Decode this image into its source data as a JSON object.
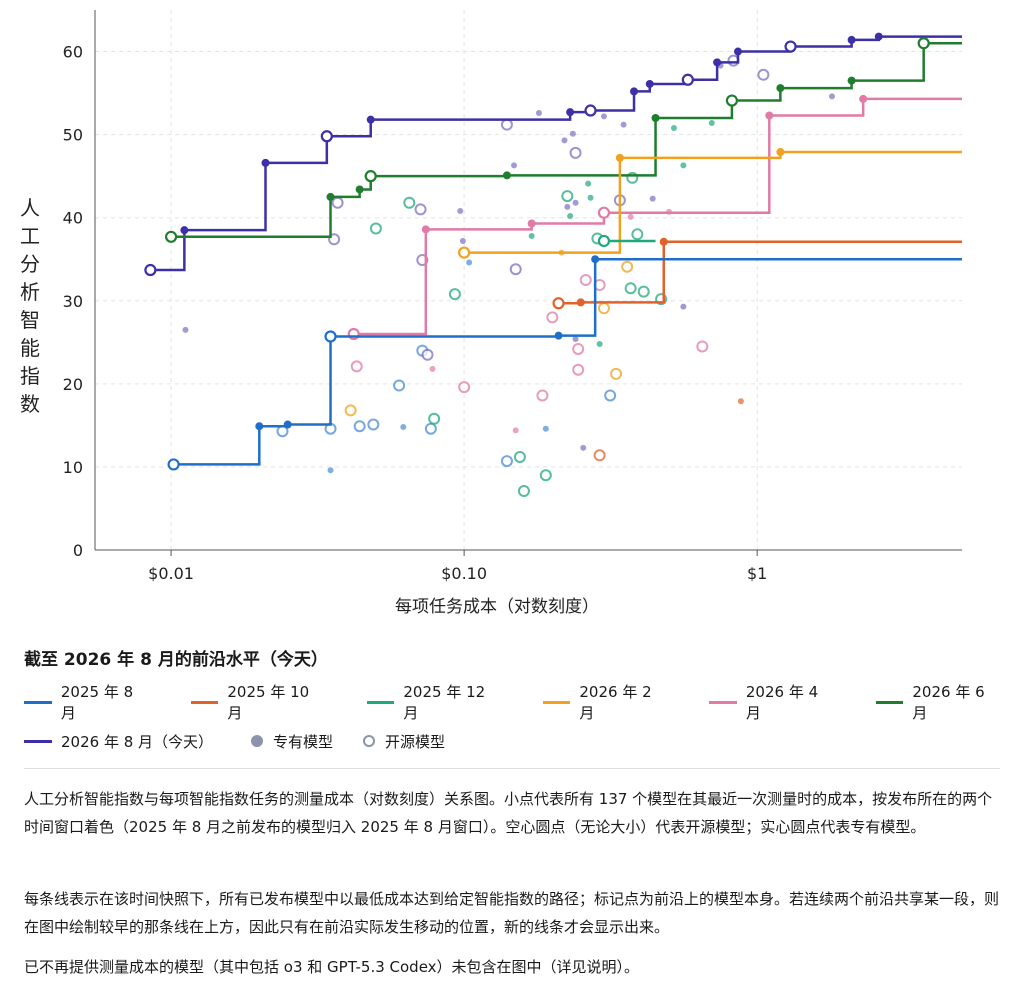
{
  "chart_data": {
    "type": "line",
    "xlabel": "每项任务成本（对数刻度）",
    "ylabel": "人工分析智能指数",
    "xscale": "log",
    "xlim": [
      0.0055,
      5.0
    ],
    "ylim": [
      0,
      65
    ],
    "xticks": [
      0.01,
      0.1,
      1
    ],
    "xtick_labels": [
      "$0.01",
      "$0.10",
      "$1"
    ],
    "yticks": [
      0,
      10,
      20,
      30,
      40,
      50,
      60
    ],
    "grid": true,
    "legend_title": "截至 2026 年 8 月的前沿水平（今天）",
    "frontiers": [
      {
        "name": "2025 年 8 月",
        "color": "#1f6fc8",
        "points": [
          [
            0.0102,
            10.3
          ],
          [
            0.02,
            14.9
          ],
          [
            0.025,
            15.1
          ],
          [
            0.035,
            25.7
          ],
          [
            0.21,
            25.8
          ],
          [
            0.28,
            35.0
          ]
        ],
        "end_x": 5.0
      },
      {
        "name": "2025 年 10 月",
        "color": "#e0622a",
        "points": [
          [
            0.21,
            29.7
          ],
          [
            0.25,
            29.8
          ],
          [
            0.48,
            37.1
          ]
        ],
        "end_x": 5.0
      },
      {
        "name": "2025 年 12 月",
        "color": "#1fa87c",
        "points": [
          [
            0.3,
            37.2
          ]
        ],
        "end_x": 0.45
      },
      {
        "name": "2026 年 2 月",
        "color": "#f0a11e",
        "points": [
          [
            0.1,
            35.8
          ],
          [
            0.34,
            47.2
          ],
          [
            1.2,
            47.9
          ]
        ],
        "end_x": 5.0
      },
      {
        "name": "2026 年 4 月",
        "color": "#e27aa7",
        "points": [
          [
            0.042,
            26.0
          ],
          [
            0.074,
            38.6
          ],
          [
            0.17,
            39.3
          ],
          [
            0.3,
            40.6
          ],
          [
            1.1,
            52.3
          ],
          [
            2.3,
            54.3
          ]
        ],
        "end_x": 5.0
      },
      {
        "name": "2026 年 6 月",
        "color": "#1e7e2e",
        "points": [
          [
            0.01,
            37.7
          ],
          [
            0.035,
            42.5
          ],
          [
            0.044,
            43.4
          ],
          [
            0.048,
            45.0
          ],
          [
            0.14,
            45.1
          ],
          [
            0.45,
            52.0
          ],
          [
            0.82,
            54.1
          ],
          [
            1.2,
            55.6
          ],
          [
            2.1,
            56.5
          ],
          [
            3.7,
            61.0
          ]
        ],
        "end_x": 5.0
      },
      {
        "name": "2026 年 8 月（今天）",
        "color": "#3d2fa6",
        "points": [
          [
            0.0085,
            33.7
          ],
          [
            0.0111,
            38.5
          ],
          [
            0.021,
            46.6
          ],
          [
            0.034,
            49.8
          ],
          [
            0.048,
            51.8
          ],
          [
            0.23,
            52.7
          ],
          [
            0.27,
            52.9
          ],
          [
            0.38,
            55.2
          ],
          [
            0.43,
            56.1
          ],
          [
            0.58,
            56.6
          ],
          [
            0.73,
            58.7
          ],
          [
            0.86,
            60.0
          ],
          [
            1.3,
            60.6
          ],
          [
            2.1,
            61.4
          ],
          [
            2.6,
            61.8
          ]
        ],
        "end_x": 5.0
      }
    ],
    "scatter": [
      {
        "x": 0.0112,
        "y": 26.5,
        "open": false,
        "color": "#7b6fc2"
      },
      {
        "x": 0.035,
        "y": 9.6,
        "open": false,
        "color": "#4a8ad4"
      },
      {
        "x": 0.024,
        "y": 14.3,
        "open": true,
        "color": "#4a8ad4"
      },
      {
        "x": 0.035,
        "y": 14.6,
        "open": true,
        "color": "#4a8ad4"
      },
      {
        "x": 0.044,
        "y": 14.9,
        "open": true,
        "color": "#4a8ad4"
      },
      {
        "x": 0.049,
        "y": 15.1,
        "open": true,
        "color": "#4a8ad4"
      },
      {
        "x": 0.041,
        "y": 16.8,
        "open": true,
        "color": "#f0a11e"
      },
      {
        "x": 0.043,
        "y": 22.1,
        "open": true,
        "color": "#e27aa7"
      },
      {
        "x": 0.036,
        "y": 37.4,
        "open": true,
        "color": "#7b6fc2"
      },
      {
        "x": 0.037,
        "y": 41.8,
        "open": true,
        "color": "#7b6fc2"
      },
      {
        "x": 0.05,
        "y": 38.7,
        "open": true,
        "color": "#1fa87c"
      },
      {
        "x": 0.06,
        "y": 19.8,
        "open": true,
        "color": "#4a8ad4"
      },
      {
        "x": 0.062,
        "y": 14.8,
        "open": false,
        "color": "#4a8ad4"
      },
      {
        "x": 0.065,
        "y": 41.8,
        "open": true,
        "color": "#1fa87c"
      },
      {
        "x": 0.071,
        "y": 41.0,
        "open": true,
        "color": "#7b6fc2"
      },
      {
        "x": 0.072,
        "y": 34.9,
        "open": true,
        "color": "#7b6fc2"
      },
      {
        "x": 0.072,
        "y": 24.0,
        "open": true,
        "color": "#4a8ad4"
      },
      {
        "x": 0.075,
        "y": 23.5,
        "open": true,
        "color": "#7b6fc2"
      },
      {
        "x": 0.078,
        "y": 21.8,
        "open": false,
        "color": "#e27aa7"
      },
      {
        "x": 0.077,
        "y": 14.6,
        "open": true,
        "color": "#4a8ad4"
      },
      {
        "x": 0.079,
        "y": 15.8,
        "open": true,
        "color": "#1fa87c"
      },
      {
        "x": 0.093,
        "y": 30.8,
        "open": true,
        "color": "#1fa87c"
      },
      {
        "x": 0.097,
        "y": 40.8,
        "open": false,
        "color": "#7b6fc2"
      },
      {
        "x": 0.099,
        "y": 37.2,
        "open": false,
        "color": "#7b6fc2"
      },
      {
        "x": 0.1,
        "y": 19.6,
        "open": true,
        "color": "#e27aa7"
      },
      {
        "x": 0.104,
        "y": 34.6,
        "open": false,
        "color": "#4a8ad4"
      },
      {
        "x": 0.14,
        "y": 51.2,
        "open": true,
        "color": "#7b6fc2"
      },
      {
        "x": 0.148,
        "y": 46.3,
        "open": false,
        "color": "#7b6fc2"
      },
      {
        "x": 0.15,
        "y": 33.8,
        "open": true,
        "color": "#7b6fc2"
      },
      {
        "x": 0.14,
        "y": 10.7,
        "open": true,
        "color": "#4a8ad4"
      },
      {
        "x": 0.15,
        "y": 14.4,
        "open": false,
        "color": "#e27aa7"
      },
      {
        "x": 0.155,
        "y": 11.2,
        "open": true,
        "color": "#1fa87c"
      },
      {
        "x": 0.16,
        "y": 7.1,
        "open": true,
        "color": "#1fa87c"
      },
      {
        "x": 0.18,
        "y": 52.6,
        "open": false,
        "color": "#7b6fc2"
      },
      {
        "x": 0.17,
        "y": 37.8,
        "open": false,
        "color": "#1fa87c"
      },
      {
        "x": 0.185,
        "y": 18.6,
        "open": true,
        "color": "#e27aa7"
      },
      {
        "x": 0.19,
        "y": 14.6,
        "open": false,
        "color": "#4a8ad4"
      },
      {
        "x": 0.19,
        "y": 9.0,
        "open": true,
        "color": "#1fa87c"
      },
      {
        "x": 0.2,
        "y": 28.0,
        "open": true,
        "color": "#e27aa7"
      },
      {
        "x": 0.215,
        "y": 35.8,
        "open": false,
        "color": "#f0a11e"
      },
      {
        "x": 0.22,
        "y": 49.3,
        "open": false,
        "color": "#7b6fc2"
      },
      {
        "x": 0.225,
        "y": 42.6,
        "open": true,
        "color": "#1fa87c"
      },
      {
        "x": 0.225,
        "y": 41.3,
        "open": false,
        "color": "#7b6fc2"
      },
      {
        "x": 0.23,
        "y": 40.2,
        "open": false,
        "color": "#1fa87c"
      },
      {
        "x": 0.235,
        "y": 50.1,
        "open": false,
        "color": "#7b6fc2"
      },
      {
        "x": 0.24,
        "y": 47.8,
        "open": true,
        "color": "#7b6fc2"
      },
      {
        "x": 0.24,
        "y": 41.8,
        "open": false,
        "color": "#7b6fc2"
      },
      {
        "x": 0.24,
        "y": 25.4,
        "open": false,
        "color": "#7b6fc2"
      },
      {
        "x": 0.245,
        "y": 24.2,
        "open": true,
        "color": "#e27aa7"
      },
      {
        "x": 0.245,
        "y": 21.7,
        "open": true,
        "color": "#e27aa7"
      },
      {
        "x": 0.255,
        "y": 12.3,
        "open": false,
        "color": "#7b6fc2"
      },
      {
        "x": 0.26,
        "y": 32.5,
        "open": true,
        "color": "#e27aa7"
      },
      {
        "x": 0.265,
        "y": 44.1,
        "open": false,
        "color": "#1fa87c"
      },
      {
        "x": 0.27,
        "y": 42.4,
        "open": false,
        "color": "#1fa87c"
      },
      {
        "x": 0.285,
        "y": 37.5,
        "open": true,
        "color": "#1fa87c"
      },
      {
        "x": 0.29,
        "y": 31.9,
        "open": true,
        "color": "#e27aa7"
      },
      {
        "x": 0.29,
        "y": 24.8,
        "open": false,
        "color": "#1fa87c"
      },
      {
        "x": 0.29,
        "y": 11.4,
        "open": true,
        "color": "#e0622a"
      },
      {
        "x": 0.3,
        "y": 52.2,
        "open": false,
        "color": "#7b6fc2"
      },
      {
        "x": 0.3,
        "y": 29.1,
        "open": true,
        "color": "#f0a11e"
      },
      {
        "x": 0.315,
        "y": 18.6,
        "open": true,
        "color": "#4a8ad4"
      },
      {
        "x": 0.33,
        "y": 21.2,
        "open": true,
        "color": "#f0a11e"
      },
      {
        "x": 0.34,
        "y": 42.1,
        "open": true,
        "color": "#7b6fc2"
      },
      {
        "x": 0.35,
        "y": 51.2,
        "open": false,
        "color": "#7b6fc2"
      },
      {
        "x": 0.36,
        "y": 34.1,
        "open": true,
        "color": "#f0a11e"
      },
      {
        "x": 0.37,
        "y": 40.1,
        "open": false,
        "color": "#e27aa7"
      },
      {
        "x": 0.375,
        "y": 44.8,
        "open": true,
        "color": "#1fa87c"
      },
      {
        "x": 0.37,
        "y": 31.5,
        "open": true,
        "color": "#1fa87c"
      },
      {
        "x": 0.39,
        "y": 38.0,
        "open": true,
        "color": "#1fa87c"
      },
      {
        "x": 0.41,
        "y": 31.1,
        "open": true,
        "color": "#1fa87c"
      },
      {
        "x": 0.44,
        "y": 42.3,
        "open": false,
        "color": "#7b6fc2"
      },
      {
        "x": 0.47,
        "y": 30.2,
        "open": true,
        "color": "#1fa87c"
      },
      {
        "x": 0.5,
        "y": 40.7,
        "open": false,
        "color": "#e27aa7"
      },
      {
        "x": 0.52,
        "y": 50.8,
        "open": false,
        "color": "#1fa87c"
      },
      {
        "x": 0.56,
        "y": 29.3,
        "open": false,
        "color": "#7b6fc2"
      },
      {
        "x": 0.56,
        "y": 46.3,
        "open": false,
        "color": "#1fa87c"
      },
      {
        "x": 0.65,
        "y": 24.5,
        "open": true,
        "color": "#e27aa7"
      },
      {
        "x": 0.7,
        "y": 51.4,
        "open": false,
        "color": "#1fa87c"
      },
      {
        "x": 0.75,
        "y": 58.3,
        "open": false,
        "color": "#7b6fc2"
      },
      {
        "x": 0.83,
        "y": 58.9,
        "open": true,
        "color": "#7b6fc2"
      },
      {
        "x": 0.88,
        "y": 17.9,
        "open": false,
        "color": "#e0622a"
      },
      {
        "x": 1.05,
        "y": 57.2,
        "open": true,
        "color": "#7b6fc2"
      },
      {
        "x": 1.8,
        "y": 54.6,
        "open": false,
        "color": "#7b6fc2"
      }
    ]
  },
  "legend": {
    "items": [
      {
        "label": "2025 年 8 月",
        "color": "#1f6fc8"
      },
      {
        "label": "2025 年 10 月",
        "color": "#e0622a"
      },
      {
        "label": "2025 年 12 月",
        "color": "#1fa87c"
      },
      {
        "label": "2026 年 2 月",
        "color": "#f0a11e"
      },
      {
        "label": "2026 年 4 月",
        "color": "#e27aa7"
      },
      {
        "label": "2026 年 6 月",
        "color": "#1e7e2e"
      },
      {
        "label": "2026 年 8 月（今天）",
        "color": "#3d2fa6"
      }
    ],
    "proprietary_label": "专有模型",
    "open_label": "开源模型",
    "marker_color": "#8c93ad"
  },
  "caption": {
    "p1": "人工分析智能指数与每项智能指数任务的测量成本（对数刻度）关系图。小点代表所有 137 个模型在其最近一次测量时的成本，按发布所在的两个时间窗口着色（2025 年 8 月之前发布的模型归入 2025 年 8 月窗口）。空心圆点（无论大小）代表开源模型；实心圆点代表专有模型。",
    "p2": "每条线表示在该时间快照下，所有已发布模型中以最低成本达到给定智能指数的路径；标记点为前沿上的模型本身。若连续两个前沿共享某一段，则在图中绘制较早的那条线在上方，因此只有在前沿实际发生移动的位置，新的线条才会显示出来。",
    "p3": "已不再提供测量成本的模型（其中包括 o3 和 GPT-5.3 Codex）未包含在图中（详见说明）。"
  }
}
